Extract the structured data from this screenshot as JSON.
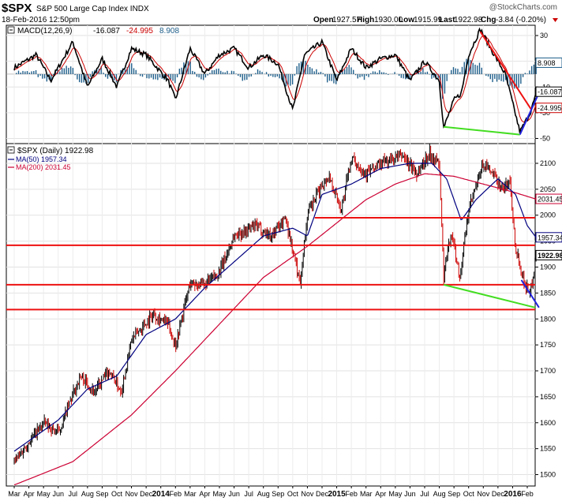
{
  "header": {
    "symbol": "$SPX",
    "name": "S&P 500 Large Cap Index INDX",
    "date": "18-Feb-2016 12:50pm",
    "watermark": "@StockCharts.com",
    "open_label": "Open",
    "open": "1927.57",
    "high_label": "High",
    "high": "1930.00",
    "low_label": "Low",
    "low": "1915.99",
    "last_label": "Last",
    "last": "1922.98",
    "chg_label": "Chg",
    "chg": "-3.84 (-0.20%)"
  },
  "macd_panel": {
    "legend": {
      "label": "MACD(12,26,9)",
      "macd": "-16.087",
      "signal": "-24.995",
      "hist": "8.908"
    },
    "ticks": [
      30,
      10,
      -10,
      -30,
      -50
    ],
    "ylim": [
      -54,
      38
    ],
    "badges": {
      "hist": "8.908",
      "macd": "-16.087",
      "signal": "-24.995"
    },
    "colors": {
      "macd": "#000000",
      "signal": "#cc0000",
      "hist": "#1f5f8b"
    }
  },
  "price_panel": {
    "legend": {
      "title": "$SPX (Daily) 1922.98",
      "ma50": "MA(50) 1957.34",
      "ma200": "MA(200) 2031.45"
    },
    "ticks": [
      2100,
      2050,
      2000,
      1950,
      1900,
      1850,
      1800,
      1750,
      1700,
      1650,
      1600,
      1550,
      1500
    ],
    "ylim": [
      1478,
      2138
    ],
    "badges": {
      "ma200": "2031.45",
      "ma50": "1957.34",
      "last": "1922.98"
    },
    "colors": {
      "ma50": "#000080",
      "ma200": "#cc0033",
      "up": "#000000",
      "down": "#cc0000"
    }
  },
  "chart_data": {
    "type": "line",
    "x_labels": [
      "Mar",
      "Apr",
      "May",
      "Jun",
      "Jul",
      "Aug",
      "Sep",
      "Oct",
      "Nov",
      "Dec",
      "2014",
      "Feb",
      "Mar",
      "Apr",
      "May",
      "Jun",
      "Jul",
      "Aug",
      "Sep",
      "Oct",
      "Nov",
      "Dec",
      "2015",
      "Feb",
      "Mar",
      "Apr",
      "May",
      "Jun",
      "Jul",
      "Aug",
      "Sep",
      "Oct",
      "Nov",
      "Dec",
      "2016",
      "Feb"
    ],
    "x_bold": [
      "2014",
      "2015",
      "2016"
    ],
    "price_anchors": [
      [
        0,
        1525
      ],
      [
        2,
        1600
      ],
      [
        3,
        1580
      ],
      [
        4.5,
        1690
      ],
      [
        5.5,
        1660
      ],
      [
        6.5,
        1700
      ],
      [
        7.3,
        1660
      ],
      [
        8,
        1760
      ],
      [
        9.5,
        1810
      ],
      [
        10.5,
        1790
      ],
      [
        11,
        1750
      ],
      [
        12,
        1870
      ],
      [
        13,
        1865
      ],
      [
        14,
        1890
      ],
      [
        15,
        1960
      ],
      [
        16.5,
        1980
      ],
      [
        17.5,
        1960
      ],
      [
        18.5,
        1995
      ],
      [
        19.5,
        1870
      ],
      [
        20,
        2000
      ],
      [
        21,
        2060
      ],
      [
        21.5,
        2075
      ],
      [
        22.3,
        2010
      ],
      [
        23,
        2110
      ],
      [
        24,
        2080
      ],
      [
        25,
        2100
      ],
      [
        26.5,
        2115
      ],
      [
        27.5,
        2080
      ],
      [
        28.3,
        2120
      ],
      [
        29,
        2100
      ],
      [
        29.3,
        1880
      ],
      [
        29.8,
        1970
      ],
      [
        30.4,
        1880
      ],
      [
        31,
        2010
      ],
      [
        32,
        2100
      ],
      [
        32.6,
        2080
      ],
      [
        33.4,
        2050
      ],
      [
        33.8,
        2070
      ],
      [
        34.2,
        1940
      ],
      [
        34.8,
        1870
      ],
      [
        35.2,
        1850
      ],
      [
        35.6,
        1923
      ]
    ],
    "ma50_anchors": [
      [
        0,
        1545
      ],
      [
        3,
        1605
      ],
      [
        5,
        1665
      ],
      [
        7,
        1690
      ],
      [
        9,
        1770
      ],
      [
        11,
        1800
      ],
      [
        13,
        1860
      ],
      [
        15,
        1910
      ],
      [
        17,
        1960
      ],
      [
        19,
        1975
      ],
      [
        20,
        1960
      ],
      [
        21,
        2040
      ],
      [
        22,
        2050
      ],
      [
        23,
        2060
      ],
      [
        25,
        2090
      ],
      [
        27,
        2100
      ],
      [
        28.5,
        2100
      ],
      [
        29.5,
        2070
      ],
      [
        30.5,
        1990
      ],
      [
        31.5,
        2030
      ],
      [
        33,
        2070
      ],
      [
        34.2,
        2040
      ],
      [
        35,
        1980
      ],
      [
        35.6,
        1957
      ]
    ],
    "ma200_anchors": [
      [
        0,
        1480
      ],
      [
        4,
        1525
      ],
      [
        8,
        1615
      ],
      [
        11,
        1700
      ],
      [
        14,
        1790
      ],
      [
        17,
        1880
      ],
      [
        20,
        1940
      ],
      [
        22,
        1985
      ],
      [
        24,
        2030
      ],
      [
        26,
        2060
      ],
      [
        28,
        2080
      ],
      [
        30,
        2075
      ],
      [
        32,
        2060
      ],
      [
        34,
        2045
      ],
      [
        35.6,
        2031
      ]
    ],
    "macd_anchors": [
      [
        0,
        5
      ],
      [
        1.5,
        15
      ],
      [
        2.5,
        -5
      ],
      [
        4,
        25
      ],
      [
        5,
        -10
      ],
      [
        6,
        12
      ],
      [
        7,
        -10
      ],
      [
        8,
        20
      ],
      [
        9,
        15
      ],
      [
        10.5,
        -5
      ],
      [
        11,
        -20
      ],
      [
        12,
        20
      ],
      [
        13,
        0
      ],
      [
        14,
        15
      ],
      [
        15,
        20
      ],
      [
        16,
        5
      ],
      [
        17,
        15
      ],
      [
        18,
        8
      ],
      [
        19,
        -28
      ],
      [
        19.8,
        15
      ],
      [
        21,
        25
      ],
      [
        22,
        -5
      ],
      [
        23,
        20
      ],
      [
        24,
        5
      ],
      [
        25,
        12
      ],
      [
        26,
        15
      ],
      [
        27,
        -5
      ],
      [
        28,
        10
      ],
      [
        29,
        -5
      ],
      [
        29.3,
        -42
      ],
      [
        30,
        -20
      ],
      [
        30.5,
        -15
      ],
      [
        31,
        15
      ],
      [
        31.8,
        35
      ],
      [
        32.5,
        20
      ],
      [
        33.5,
        0
      ],
      [
        34.5,
        -45
      ],
      [
        35.2,
        -30
      ],
      [
        35.6,
        -16
      ]
    ],
    "drawn_lines": [
      {
        "panel": "macd",
        "color": "#ee1111",
        "points": [
          [
            31.8,
            33
          ],
          [
            35.3,
            -28
          ]
        ]
      },
      {
        "panel": "macd",
        "color": "#44dd22",
        "points": [
          [
            29.3,
            -41
          ],
          [
            34.5,
            -47
          ]
        ]
      },
      {
        "panel": "macd",
        "color": "#2222dd",
        "points": [
          [
            34.5,
            -47
          ],
          [
            35.9,
            -12
          ]
        ]
      },
      {
        "panel": "price",
        "color": "#ee1111",
        "points": [
          [
            0,
            1942
          ],
          [
            36,
            1942
          ]
        ]
      },
      {
        "panel": "price",
        "color": "#ee1111",
        "points": [
          [
            0,
            1866
          ],
          [
            36,
            1866
          ]
        ]
      },
      {
        "panel": "price",
        "color": "#ee1111",
        "points": [
          [
            0,
            1818
          ],
          [
            36,
            1818
          ]
        ]
      },
      {
        "panel": "price",
        "color": "#ee1111",
        "points": [
          [
            20.5,
            1995
          ],
          [
            36,
            1995
          ]
        ]
      },
      {
        "panel": "price",
        "color": "#44dd22",
        "points": [
          [
            29.3,
            1866
          ],
          [
            36,
            1822
          ]
        ]
      },
      {
        "panel": "price",
        "color": "#2222dd",
        "points": [
          [
            34.6,
            1875
          ],
          [
            35.8,
            1822
          ]
        ]
      }
    ]
  }
}
